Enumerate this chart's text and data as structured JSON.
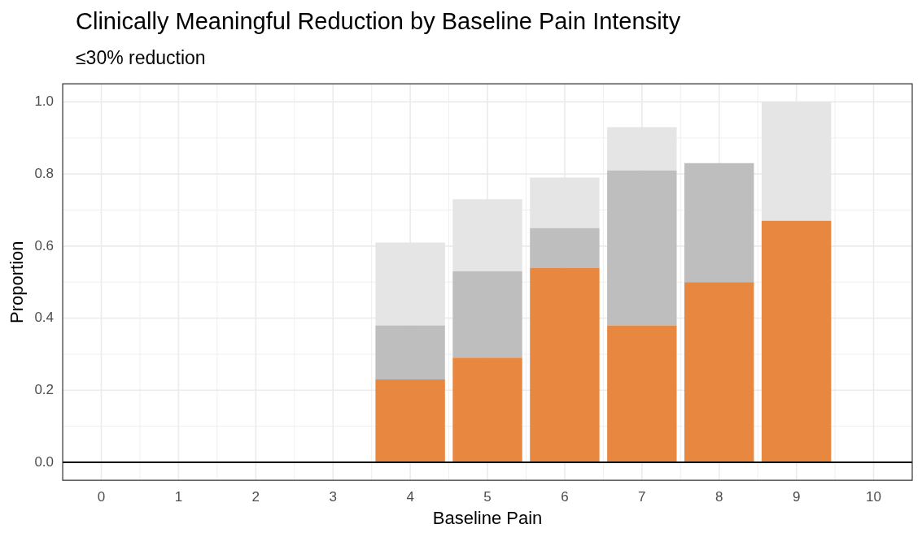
{
  "chart_data": {
    "type": "bar",
    "title": "Clinically Meaningful Reduction by Baseline Pain Intensity",
    "subtitle": "≤30% reduction",
    "xlabel": "Baseline Pain",
    "ylabel": "Proportion",
    "categories": [
      "0",
      "1",
      "2",
      "3",
      "4",
      "5",
      "6",
      "7",
      "8",
      "9",
      "10"
    ],
    "stacked": true,
    "series": [
      {
        "color": "#e8873f",
        "values": [
          null,
          null,
          null,
          null,
          0.23,
          0.29,
          0.54,
          0.38,
          0.5,
          0.67,
          null
        ]
      },
      {
        "color": "#bebebe",
        "values": [
          null,
          null,
          null,
          null,
          0.15,
          0.24,
          0.11,
          0.43,
          0.33,
          0,
          null
        ]
      },
      {
        "color": "#e5e5e5",
        "values": [
          null,
          null,
          null,
          null,
          0.23,
          0.2,
          0.14,
          0.12,
          0,
          0.33,
          null
        ]
      }
    ],
    "ylim": [
      -0.05,
      1.05
    ],
    "yticks": [
      {
        "value": 0,
        "label": "0.0"
      },
      0.2,
      0.4,
      0.6,
      0.8,
      {
        "value": 1,
        "label": "1.0"
      }
    ],
    "ref_lines": [
      {
        "axis": "y",
        "value": 0,
        "color": "#000000"
      }
    ],
    "grid": true,
    "legend": false
  }
}
